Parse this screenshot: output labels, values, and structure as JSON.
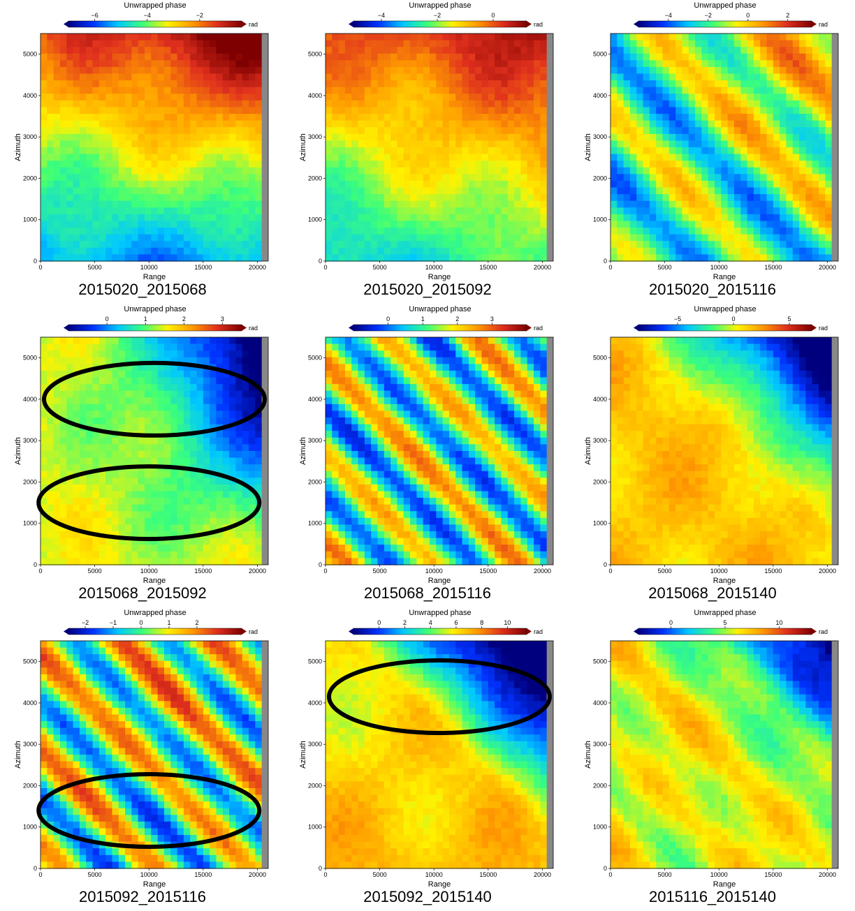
{
  "figure": "Unwrapped phase interferogram grid",
  "chart_data": [
    {
      "type": "heatmap",
      "caption": "2015020_2015068",
      "colorbar_title": "Unwrapped phase",
      "colorbar_unit": "rad",
      "cbar_range": [
        -7,
        -0.4
      ],
      "cbar_ticks": [
        -6,
        -4,
        -2
      ],
      "xlabel": "Range",
      "ylabel": "Azimuth",
      "xlim": [
        0,
        21000
      ],
      "ylim": [
        0,
        5500
      ],
      "xticks": [
        0,
        5000,
        10000,
        15000,
        20000
      ],
      "yticks": [
        0,
        1000,
        2000,
        3000,
        4000,
        5000
      ],
      "ellipses": []
    },
    {
      "type": "heatmap",
      "caption": "2015020_2015092",
      "colorbar_title": "Unwrapped phase",
      "colorbar_unit": "rad",
      "cbar_range": [
        -5,
        1.2
      ],
      "cbar_ticks": [
        -4,
        -2,
        0
      ],
      "xlabel": "Range",
      "ylabel": "Azimuth",
      "xlim": [
        0,
        21000
      ],
      "ylim": [
        0,
        5500
      ],
      "xticks": [
        0,
        5000,
        10000,
        15000,
        20000
      ],
      "yticks": [
        0,
        1000,
        2000,
        3000,
        4000,
        5000
      ],
      "ellipses": []
    },
    {
      "type": "heatmap",
      "caption": "2015020_2015116",
      "colorbar_title": "Unwrapped phase",
      "colorbar_unit": "rad",
      "cbar_range": [
        -5.5,
        3.2
      ],
      "cbar_ticks": [
        -4,
        -2,
        0,
        2
      ],
      "xlabel": "Range",
      "ylabel": "Azimuth",
      "xlim": [
        0,
        21000
      ],
      "ylim": [
        0,
        5500
      ],
      "xticks": [
        0,
        5000,
        10000,
        15000,
        20000
      ],
      "yticks": [
        0,
        1000,
        2000,
        3000,
        4000,
        5000
      ],
      "ellipses": []
    },
    {
      "type": "heatmap",
      "caption": "2015068_2015092",
      "colorbar_title": "Unwrapped phase",
      "colorbar_unit": "rad",
      "cbar_range": [
        -1,
        3.5
      ],
      "cbar_ticks": [
        0,
        1,
        2,
        3
      ],
      "xlabel": "Range",
      "ylabel": "Azimuth",
      "xlim": [
        0,
        21000
      ],
      "ylim": [
        0,
        5500
      ],
      "xticks": [
        0,
        5000,
        10000,
        15000,
        20000
      ],
      "yticks": [
        0,
        1000,
        2000,
        3000,
        4000,
        5000
      ],
      "ellipses": [
        {
          "center_range": 10500,
          "center_azimuth": 4000
        },
        {
          "center_range": 10000,
          "center_azimuth": 1500
        }
      ]
    },
    {
      "type": "heatmap",
      "caption": "2015068_2015116",
      "colorbar_title": "Unwrapped phase",
      "colorbar_unit": "rad",
      "cbar_range": [
        -1,
        4
      ],
      "cbar_ticks": [
        0,
        1,
        2,
        3
      ],
      "xlabel": "Range",
      "ylabel": "Azimuth",
      "xlim": [
        0,
        21000
      ],
      "ylim": [
        0,
        5500
      ],
      "xticks": [
        0,
        5000,
        10000,
        15000,
        20000
      ],
      "yticks": [
        0,
        1000,
        2000,
        3000,
        4000,
        5000
      ],
      "ellipses": []
    },
    {
      "type": "heatmap",
      "caption": "2015068_2015140",
      "colorbar_title": "Unwrapped phase",
      "colorbar_unit": "rad",
      "cbar_range": [
        -8.5,
        7
      ],
      "cbar_ticks": [
        -5,
        0,
        5
      ],
      "xlabel": "Range",
      "ylabel": "Azimuth",
      "xlim": [
        0,
        21000
      ],
      "ylim": [
        0,
        5500
      ],
      "xticks": [
        0,
        5000,
        10000,
        15000,
        20000
      ],
      "yticks": [
        0,
        1000,
        2000,
        3000,
        4000,
        5000
      ],
      "ellipses": []
    },
    {
      "type": "heatmap",
      "caption": "2015092_2015116",
      "colorbar_title": "Unwrapped phase",
      "colorbar_unit": "rad",
      "cbar_range": [
        -2.6,
        3.6
      ],
      "cbar_ticks": [
        -2,
        -1,
        0,
        1,
        2
      ],
      "xlabel": "Range",
      "ylabel": "Azimuth",
      "xlim": [
        0,
        21000
      ],
      "ylim": [
        0,
        5500
      ],
      "xticks": [
        0,
        5000,
        10000,
        15000,
        20000
      ],
      "yticks": [
        0,
        1000,
        2000,
        3000,
        4000,
        5000
      ],
      "ellipses": [
        {
          "center_range": 10000,
          "center_azimuth": 1400
        }
      ]
    },
    {
      "type": "heatmap",
      "caption": "2015092_2015140",
      "colorbar_title": "Unwrapped phase",
      "colorbar_unit": "rad",
      "cbar_range": [
        -2,
        11.5
      ],
      "cbar_ticks": [
        0,
        2,
        4,
        6,
        8,
        10
      ],
      "xlabel": "Range",
      "ylabel": "Azimuth",
      "xlim": [
        0,
        21000
      ],
      "ylim": [
        0,
        5500
      ],
      "xticks": [
        0,
        5000,
        10000,
        15000,
        20000
      ],
      "yticks": [
        0,
        1000,
        2000,
        3000,
        4000,
        5000
      ],
      "ellipses": [
        {
          "center_range": 10500,
          "center_azimuth": 4150
        }
      ]
    },
    {
      "type": "heatmap",
      "caption": "2015116_2015140",
      "colorbar_title": "Unwrapped phase",
      "colorbar_unit": "rad",
      "cbar_range": [
        -3,
        13
      ],
      "cbar_ticks": [
        0,
        5,
        10
      ],
      "xlabel": "Range",
      "ylabel": "Azimuth",
      "xlim": [
        0,
        21000
      ],
      "ylim": [
        0,
        5500
      ],
      "xticks": [
        0,
        5000,
        10000,
        15000,
        20000
      ],
      "yticks": [
        0,
        1000,
        2000,
        3000,
        4000,
        5000
      ],
      "ellipses": []
    }
  ],
  "colors": {
    "colormap": [
      "#00007f",
      "#0033ff",
      "#00c8ff",
      "#3cff7a",
      "#fff200",
      "#ff9a00",
      "#e0301e",
      "#7f0000"
    ],
    "nodata": "#888888",
    "ellipse": "#000000"
  }
}
